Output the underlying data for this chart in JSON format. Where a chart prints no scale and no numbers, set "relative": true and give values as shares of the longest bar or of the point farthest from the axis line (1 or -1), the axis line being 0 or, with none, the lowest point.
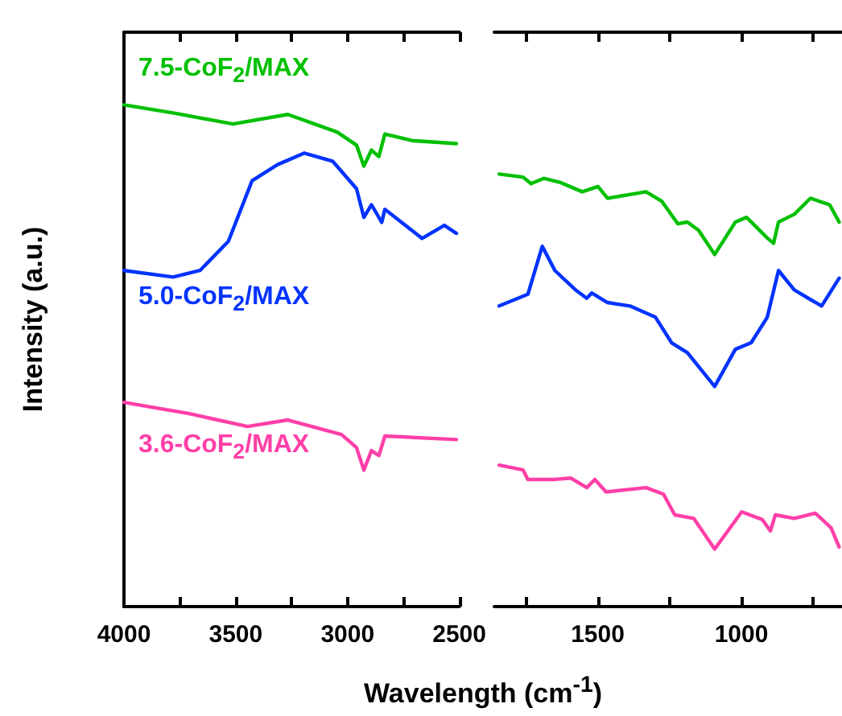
{
  "chart_data": [
    {
      "type": "line",
      "relative": true,
      "ylabel": "Intensity (a.u.)",
      "xlabel": "Wavelength (cm$^{-1}$)",
      "xlim": [
        4000,
        2500
      ],
      "xticks": [
        4000,
        {
          "value": 3750,
          "label": null
        },
        3500,
        {
          "value": 3250,
          "label": null
        },
        3000,
        {
          "value": 2750,
          "label": null
        },
        2500
      ],
      "legend": false,
      "grid": false,
      "marker": "none",
      "line_style": "solid",
      "series": [
        {
          "name": "7.5-CoF$_{2}$/MAX",
          "color": "#00c000",
          "x": [
            4000,
            3780,
            3513,
            3267,
            3047,
            2960,
            2927,
            2893,
            2860,
            2833,
            2713,
            2513
          ],
          "values": [
            1.0,
            0.984,
            0.962,
            0.981,
            0.946,
            0.92,
            0.878,
            0.91,
            0.897,
            0.942,
            0.929,
            0.923
          ]
        },
        {
          "name": "5.0-CoF$_{2}$/MAX",
          "color": "#0033ff",
          "x": [
            4000,
            3780,
            3660,
            3533,
            3427,
            3313,
            3193,
            3067,
            2960,
            2927,
            2893,
            2847,
            2833,
            2667,
            2567,
            2513
          ],
          "values": [
            0.67,
            0.657,
            0.67,
            0.728,
            0.849,
            0.881,
            0.904,
            0.888,
            0.833,
            0.776,
            0.801,
            0.766,
            0.792,
            0.734,
            0.76,
            0.744
          ]
        },
        {
          "name": "3.6-CoF$_{2}$/MAX",
          "color": "#ff3fa8",
          "x": [
            4000,
            3713,
            3447,
            3267,
            3027,
            2960,
            2927,
            2893,
            2860,
            2833,
            2513
          ],
          "values": [
            0.407,
            0.385,
            0.359,
            0.372,
            0.343,
            0.317,
            0.272,
            0.311,
            0.301,
            0.34,
            0.333
          ]
        }
      ]
    },
    {
      "type": "line",
      "relative": true,
      "xlim": [
        1860,
        650
      ],
      "xticks": [
        {
          "value": 1750,
          "label": null
        },
        1500,
        {
          "value": 1250,
          "label": null
        },
        1000,
        {
          "value": 750,
          "label": null
        }
      ],
      "tick_labels": "x",
      "legend": false,
      "grid": false,
      "marker": "none",
      "line_style": "solid",
      "series": [
        {
          "color": "#00c000",
          "x": [
            1843,
            1760,
            1732,
            1688,
            1632,
            1554,
            1499,
            1466,
            1332,
            1277,
            1221,
            1188,
            1149,
            1093,
            1021,
            982,
            910,
            888,
            871,
            816,
            760,
            693,
            660
          ],
          "values": [
            1.0,
            0.993,
            0.978,
            0.99,
            0.981,
            0.959,
            0.971,
            0.944,
            0.959,
            0.937,
            0.885,
            0.889,
            0.87,
            0.814,
            0.889,
            0.9,
            0.852,
            0.84,
            0.889,
            0.907,
            0.944,
            0.929,
            0.889
          ]
        },
        {
          "color": "#0033ff",
          "x": [
            1843,
            1743,
            1693,
            1649,
            1577,
            1538,
            1521,
            1466,
            1388,
            1299,
            1243,
            1188,
            1093,
            1021,
            966,
            910,
            871,
            816,
            760,
            721,
            660
          ],
          "values": [
            0.695,
            0.722,
            0.833,
            0.777,
            0.732,
            0.713,
            0.725,
            0.703,
            0.695,
            0.669,
            0.61,
            0.587,
            0.509,
            0.595,
            0.61,
            0.669,
            0.777,
            0.732,
            0.71,
            0.695,
            0.759
          ]
        },
        {
          "color": "#ff3fa8",
          "x": [
            1843,
            1760,
            1743,
            1649,
            1593,
            1538,
            1510,
            1471,
            1332,
            1271,
            1232,
            1166,
            1093,
            999,
            927,
            899,
            882,
            816,
            743,
            688,
            660
          ],
          "values": [
            0.327,
            0.316,
            0.294,
            0.294,
            0.297,
            0.275,
            0.294,
            0.265,
            0.275,
            0.26,
            0.212,
            0.204,
            0.133,
            0.219,
            0.201,
            0.175,
            0.212,
            0.204,
            0.216,
            0.182,
            0.138
          ]
        }
      ]
    }
  ]
}
